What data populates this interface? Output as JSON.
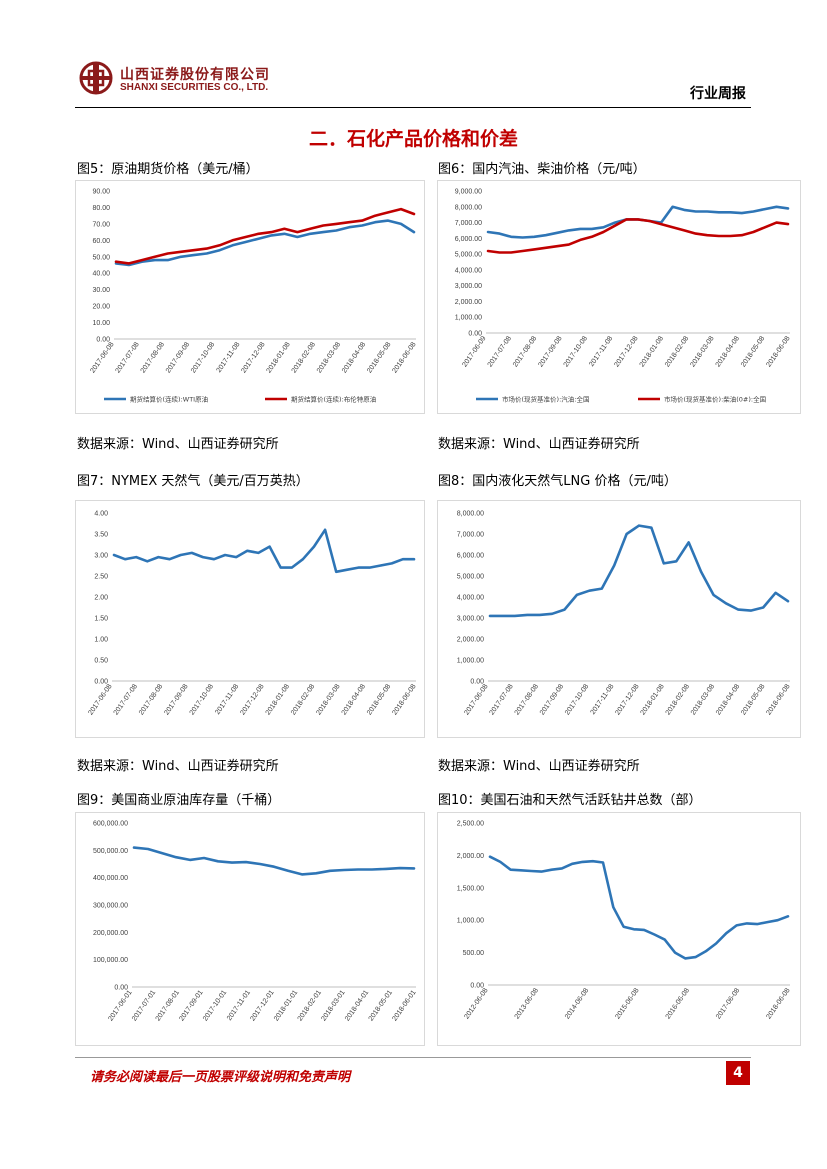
{
  "header": {
    "company_cn": "山西证券股份有限公司",
    "company_en": "SHANXI SECURITIES CO., LTD.",
    "report_type": "行业周报",
    "logo_icon": "shanxi-securities-logo-icon",
    "brand_color": "#8b1a1a"
  },
  "section_title": "二．石化产品价格和价差",
  "accent_color": "#c00000",
  "figures": [
    {
      "title": "图5：原油期货价格（美元/桶）",
      "source": "数据来源：Wind、山西证券研究所"
    },
    {
      "title": "图6：国内汽油、柴油价格（元/吨）",
      "source": "数据来源：Wind、山西证券研究所"
    },
    {
      "title": "图7：NYMEX 天然气（美元/百万英热）",
      "source": "数据来源：Wind、山西证券研究所"
    },
    {
      "title": "图8：国内液化天然气LNG 价格（元/吨）",
      "source": "数据来源：Wind、山西证券研究所"
    },
    {
      "title": "图9：美国商业原油库存量（千桶）",
      "source": ""
    },
    {
      "title": "图10：美国石油和天然气活跃钻井总数（部）",
      "source": ""
    }
  ],
  "chart_data": [
    {
      "type": "line",
      "x_ticks": [
        "2017-06-08",
        "2017-07-08",
        "2017-08-08",
        "2017-09-08",
        "2017-10-08",
        "2017-11-08",
        "2017-12-08",
        "2018-01-08",
        "2018-02-08",
        "2018-03-08",
        "2018-04-08",
        "2018-05-08",
        "2018-06-08"
      ],
      "ylim": [
        0,
        90
      ],
      "y_ticks": [
        "0.00",
        "10.00",
        "20.00",
        "30.00",
        "40.00",
        "50.00",
        "60.00",
        "70.00",
        "80.00",
        "90.00"
      ],
      "series": [
        {
          "name": "期货结算价(连续):WTI原油",
          "color": "#2e75b6",
          "values": [
            46,
            45,
            47,
            48,
            48,
            50,
            51,
            52,
            54,
            57,
            59,
            61,
            63,
            64,
            62,
            64,
            65,
            66,
            68,
            69,
            71,
            72,
            70,
            65
          ]
        },
        {
          "name": "期货结算价(连续):布伦特原油",
          "color": "#c00000",
          "values": [
            47,
            46,
            48,
            50,
            52,
            53,
            54,
            55,
            57,
            60,
            62,
            64,
            65,
            67,
            65,
            67,
            69,
            70,
            71,
            72,
            75,
            77,
            79,
            76
          ]
        }
      ]
    },
    {
      "type": "line",
      "x_ticks": [
        "2017-06-09",
        "2017-07-08",
        "2017-08-08",
        "2017-09-08",
        "2017-10-08",
        "2017-11-08",
        "2017-12-08",
        "2018-01-08",
        "2018-02-08",
        "2018-03-08",
        "2018-04-08",
        "2018-05-08",
        "2018-06-08"
      ],
      "ylim": [
        0,
        9000
      ],
      "y_ticks": [
        "0.00",
        "1,000.00",
        "2,000.00",
        "3,000.00",
        "4,000.00",
        "5,000.00",
        "6,000.00",
        "7,000.00",
        "8,000.00",
        "9,000.00"
      ],
      "series": [
        {
          "name": "市场价(现货基准价):汽油:全国",
          "color": "#2e75b6",
          "values": [
            6400,
            6300,
            6100,
            6050,
            6100,
            6200,
            6350,
            6500,
            6600,
            6600,
            6700,
            7000,
            7200,
            7200,
            7100,
            7000,
            8000,
            7800,
            7700,
            7700,
            7650,
            7650,
            7600,
            7700,
            7850,
            8000,
            7900
          ]
        },
        {
          "name": "市场价(现货基准价):柴油(0#):全国",
          "color": "#c00000",
          "values": [
            5200,
            5100,
            5100,
            5200,
            5300,
            5400,
            5500,
            5600,
            5900,
            6100,
            6400,
            6800,
            7200,
            7200,
            7100,
            6900,
            6700,
            6500,
            6300,
            6200,
            6150,
            6150,
            6200,
            6400,
            6700,
            7000,
            6900
          ]
        }
      ]
    },
    {
      "type": "line",
      "x_ticks": [
        "2017-06-08",
        "2017-07-08",
        "2017-08-08",
        "2017-09-08",
        "2017-10-08",
        "2017-11-08",
        "2017-12-08",
        "2018-01-08",
        "2018-02-08",
        "2018-03-08",
        "2018-04-08",
        "2018-05-08",
        "2018-06-08"
      ],
      "ylim": [
        0,
        4
      ],
      "y_ticks": [
        "0.00",
        "0.50",
        "1.00",
        "1.50",
        "2.00",
        "2.50",
        "3.00",
        "3.50",
        "4.00"
      ],
      "series": [
        {
          "name": "NYMEX 天然气",
          "color": "#2e75b6",
          "values": [
            3.0,
            2.9,
            2.95,
            2.85,
            2.95,
            2.9,
            3.0,
            3.05,
            2.95,
            2.9,
            3.0,
            2.95,
            3.1,
            3.05,
            3.2,
            2.7,
            2.7,
            2.9,
            3.2,
            3.6,
            2.6,
            2.65,
            2.7,
            2.7,
            2.75,
            2.8,
            2.9,
            2.9
          ]
        }
      ]
    },
    {
      "type": "line",
      "x_ticks": [
        "2017-06-08",
        "2017-07-08",
        "2017-08-08",
        "2017-09-08",
        "2017-10-08",
        "2017-11-08",
        "2017-12-08",
        "2018-01-08",
        "2018-02-08",
        "2018-03-08",
        "2018-04-08",
        "2018-05-08",
        "2018-06-08"
      ],
      "ylim": [
        0,
        8000
      ],
      "y_ticks": [
        "0.00",
        "1,000.00",
        "2,000.00",
        "3,000.00",
        "4,000.00",
        "5,000.00",
        "6,000.00",
        "7,000.00",
        "8,000.00"
      ],
      "series": [
        {
          "name": "LNG 价格",
          "color": "#2e75b6",
          "values": [
            3100,
            3100,
            3100,
            3150,
            3150,
            3200,
            3400,
            4100,
            4300,
            4400,
            5500,
            7000,
            7400,
            7300,
            5600,
            5700,
            6600,
            5200,
            4100,
            3700,
            3400,
            3350,
            3500,
            4200,
            3800
          ]
        }
      ]
    },
    {
      "type": "line",
      "x_ticks": [
        "2017-06-01",
        "2017-07-01",
        "2017-08-01",
        "2017-09-01",
        "2017-10-01",
        "2017-11-01",
        "2017-12-01",
        "2018-01-01",
        "2018-02-01",
        "2018-03-01",
        "2018-04-01",
        "2018-05-01",
        "2018-06-01"
      ],
      "ylim": [
        0,
        600000
      ],
      "y_ticks": [
        "0.00",
        "100,000.00",
        "200,000.00",
        "300,000.00",
        "400,000.00",
        "500,000.00",
        "600,000.00"
      ],
      "series": [
        {
          "name": "美国商业原油库存量",
          "color": "#2e75b6",
          "values": [
            510000,
            505000,
            490000,
            475000,
            465000,
            472000,
            460000,
            455000,
            457000,
            450000,
            440000,
            425000,
            412000,
            416000,
            425000,
            428000,
            430000,
            430000,
            432000,
            435000,
            434000
          ]
        }
      ]
    },
    {
      "type": "line",
      "x_ticks": [
        "2012-06-08",
        "2013-06-08",
        "2014-06-08",
        "2015-06-08",
        "2016-06-08",
        "2017-06-08",
        "2018-06-08"
      ],
      "ylim": [
        0,
        2500
      ],
      "y_ticks": [
        "0.00",
        "500.00",
        "1,000.00",
        "1,500.00",
        "2,000.00",
        "2,500.00"
      ],
      "series": [
        {
          "name": "美国石油和天然气活跃钻井总数",
          "color": "#2e75b6",
          "values": [
            1980,
            1900,
            1780,
            1770,
            1760,
            1750,
            1780,
            1800,
            1870,
            1900,
            1910,
            1890,
            1200,
            900,
            860,
            850,
            780,
            700,
            500,
            410,
            430,
            520,
            640,
            800,
            920,
            950,
            940,
            970,
            1000,
            1060
          ]
        }
      ]
    }
  ],
  "footer": {
    "disclaimer": "请务必阅读最后一页股票评级说明和免责声明",
    "page_number": "4"
  }
}
